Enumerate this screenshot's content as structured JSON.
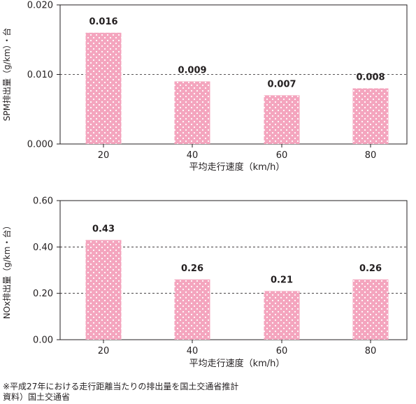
{
  "colors": {
    "bar_fill": "#f4a5be",
    "bar_dot": "#ffffff",
    "axis": "#231f20",
    "gridline": "#231f20"
  },
  "chart_data": [
    {
      "type": "bar",
      "categories": [
        "20",
        "40",
        "60",
        "80"
      ],
      "values": [
        0.016,
        0.009,
        0.007,
        0.008
      ],
      "value_labels": [
        "0.016",
        "0.009",
        "0.007",
        "0.008"
      ],
      "ylabel": "SPM排出量（g/km）・台",
      "xlabel": "平均走行速度（km/h）",
      "ylim": [
        0,
        0.02
      ],
      "yticks": [
        "0.000",
        "0.010",
        "0.020"
      ],
      "grid": "dashed horizontal at middle tick"
    },
    {
      "type": "bar",
      "categories": [
        "20",
        "40",
        "60",
        "80"
      ],
      "values": [
        0.43,
        0.26,
        0.21,
        0.26
      ],
      "value_labels": [
        "0.43",
        "0.26",
        "0.21",
        "0.26"
      ],
      "ylabel": "NOx排出量（g/km・台）",
      "xlabel": "平均走行速度（km/h）",
      "ylim": [
        0,
        0.6
      ],
      "yticks": [
        "0.00",
        "0.20",
        "0.40",
        "0.60"
      ],
      "grid": "dashed horizontal at inner ticks"
    }
  ],
  "footnote": {
    "line1": "※平成27年における走行距離当たりの排出量を国土交通省推計",
    "line2": "資料）国土交通省"
  }
}
